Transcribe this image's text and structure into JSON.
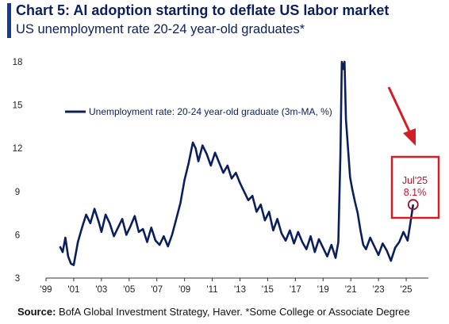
{
  "header": {
    "title": "Chart 5: AI adoption starting to deflate US labor market",
    "subtitle": "US unemployment rate 20-24 year-old graduates*"
  },
  "footer": {
    "source_label": "Source:",
    "source_text": " BofA Global Investment Strategy, Haver. *Some College or Associate Degree"
  },
  "colors": {
    "series": "#0b1f5c",
    "highlight": "#d21f26",
    "accent": "#1a3a8f"
  },
  "chart_data": {
    "type": "line",
    "title": "Chart 5: AI adoption starting to deflate US labor market",
    "subtitle": "US unemployment rate 20-24 year-old graduates*",
    "xlim": [
      1999,
      2026.6
    ],
    "ylim": [
      3,
      18
    ],
    "x_ticks": [
      "'99",
      "'01",
      "'03",
      "'05",
      "'07",
      "'09",
      "'11",
      "'13",
      "'15",
      "'17",
      "'19",
      "'21",
      "'23",
      "'25"
    ],
    "x_tick_values": [
      1999,
      2001,
      2003,
      2005,
      2007,
      2009,
      2011,
      2013,
      2015,
      2017,
      2019,
      2021,
      2023,
      2025
    ],
    "y_ticks": [
      "18",
      "15",
      "12",
      "9",
      "6",
      "3"
    ],
    "y_tick_values": [
      18,
      15,
      12,
      9,
      6,
      3
    ],
    "legend_position": "upper-left",
    "series": [
      {
        "name": "Unemployment rate: 20-24 year-old graduate (3m-MA, %)",
        "x": [
          2000.0,
          2000.2,
          2000.4,
          2000.6,
          2000.8,
          2001.0,
          2001.3,
          2001.6,
          2001.9,
          2002.2,
          2002.5,
          2002.8,
          2003.0,
          2003.3,
          2003.6,
          2003.9,
          2004.2,
          2004.5,
          2004.8,
          2005.1,
          2005.4,
          2005.7,
          2006.0,
          2006.3,
          2006.6,
          2006.9,
          2007.2,
          2007.5,
          2007.8,
          2008.1,
          2008.4,
          2008.7,
          2009.0,
          2009.3,
          2009.6,
          2009.8,
          2010.0,
          2010.3,
          2010.6,
          2010.9,
          2011.2,
          2011.5,
          2011.8,
          2012.1,
          2012.4,
          2012.7,
          2013.0,
          2013.3,
          2013.6,
          2013.9,
          2014.2,
          2014.5,
          2014.8,
          2015.1,
          2015.4,
          2015.7,
          2016.0,
          2016.3,
          2016.6,
          2016.9,
          2017.2,
          2017.5,
          2017.8,
          2018.1,
          2018.4,
          2018.7,
          2019.0,
          2019.3,
          2019.6,
          2019.9,
          2020.1,
          2020.25,
          2020.35,
          2020.45,
          2020.55,
          2020.65,
          2020.8,
          2020.95,
          2021.1,
          2021.3,
          2021.5,
          2021.7,
          2021.9,
          2022.1,
          2022.4,
          2022.7,
          2023.0,
          2023.3,
          2023.6,
          2023.9,
          2024.2,
          2024.5,
          2024.8,
          2025.1,
          2025.3,
          2025.5
        ],
        "values": [
          5.2,
          4.8,
          5.8,
          4.5,
          4.0,
          3.9,
          5.5,
          6.5,
          7.4,
          6.8,
          7.8,
          6.9,
          6.2,
          7.4,
          6.8,
          5.9,
          6.5,
          7.1,
          6.0,
          6.6,
          7.3,
          6.2,
          6.4,
          5.5,
          6.5,
          5.6,
          5.3,
          5.9,
          5.2,
          6.0,
          7.1,
          8.2,
          9.8,
          11.0,
          12.4,
          12.0,
          11.1,
          12.2,
          11.6,
          10.8,
          11.7,
          11.0,
          10.3,
          10.8,
          9.9,
          10.3,
          9.6,
          9.0,
          8.4,
          8.7,
          7.6,
          8.1,
          7.0,
          7.6,
          6.3,
          7.1,
          6.1,
          5.6,
          6.3,
          5.4,
          6.2,
          5.5,
          5.0,
          5.9,
          4.8,
          5.7,
          5.1,
          4.5,
          5.3,
          4.4,
          5.5,
          11.5,
          18.2,
          17.5,
          18.3,
          14.0,
          12.0,
          10.0,
          9.2,
          8.3,
          7.5,
          6.3,
          5.3,
          5.0,
          5.8,
          5.2,
          4.6,
          5.4,
          4.9,
          4.2,
          5.1,
          5.5,
          6.2,
          5.6,
          6.8,
          8.1
        ]
      }
    ],
    "annotation": {
      "label_month": "Jul'25",
      "label_value": "8.1%",
      "x": 2025.5,
      "y": 8.1
    }
  }
}
